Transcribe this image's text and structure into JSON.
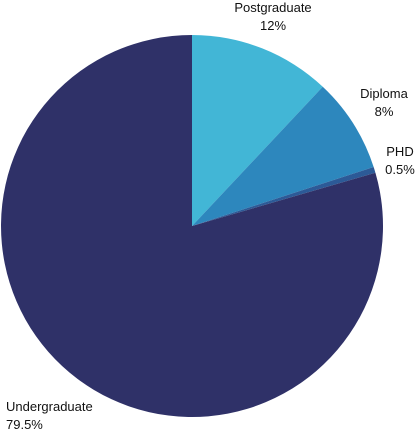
{
  "chart_data": {
    "type": "pie",
    "title": "",
    "categories": [
      "Postgraduate",
      "Diploma",
      "PHD",
      "Undergraduate"
    ],
    "values": [
      12,
      8,
      0.5,
      79.5
    ],
    "value_labels": [
      "12%",
      "8%",
      "0.5%",
      "79.5%"
    ],
    "colors": [
      "#42b6d6",
      "#2d87bd",
      "#2c5a97",
      "#2f3168"
    ],
    "start_angle": "12 o'clock",
    "direction": "clockwise",
    "legend": "none",
    "labels_placement": "outside"
  }
}
